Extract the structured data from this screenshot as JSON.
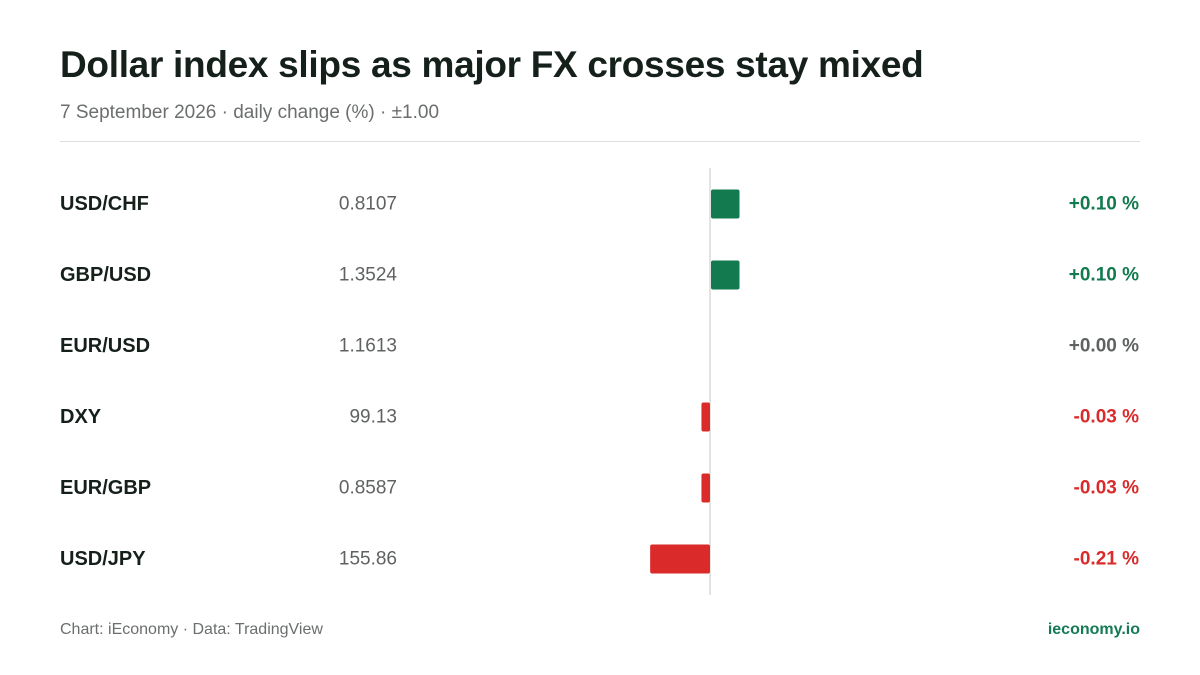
{
  "header": {
    "title": "Dollar index slips as major FX crosses stay mixed",
    "subtitle": "7 September 2026 · daily change (%) · ±1.00"
  },
  "footer": {
    "source": "Chart: iEconomy · Data: TradingView",
    "brand": "ieconomy.io"
  },
  "colors": {
    "positive": "#127a4e",
    "negative": "#da2a2a",
    "neutral": "#5f6360",
    "label": "#16201b",
    "price": "#5f6360",
    "axis": "#d9dbd9"
  },
  "chart_data": {
    "type": "bar",
    "orientation": "horizontal",
    "scale_max": 1.0,
    "categories": [
      "USD/CHF",
      "GBP/USD",
      "EUR/USD",
      "DXY",
      "EUR/GBP",
      "USD/JPY"
    ],
    "prices": [
      "0.8107",
      "1.3524",
      "1.1613",
      "99.13",
      "0.8587",
      "155.86"
    ],
    "values": [
      0.1,
      0.1,
      0.0,
      -0.03,
      -0.03,
      -0.21
    ],
    "value_labels": [
      "+0.10 %",
      "+0.10 %",
      "+0.00 %",
      "-0.03 %",
      "-0.03 %",
      "-0.21 %"
    ]
  }
}
